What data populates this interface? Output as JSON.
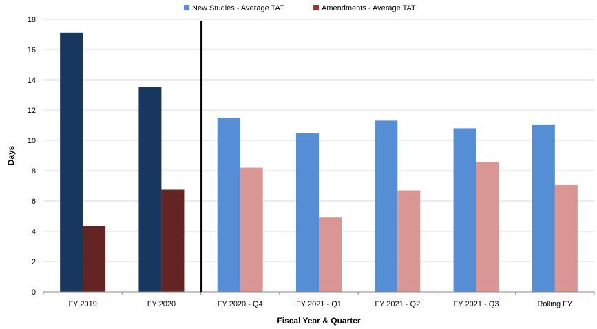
{
  "chart_data": {
    "type": "bar",
    "title": "",
    "xlabel": "Fiscal Year & Quarter",
    "ylabel": "Days",
    "ylim": [
      0,
      18
    ],
    "yticks": [
      0,
      2,
      4,
      6,
      8,
      10,
      12,
      14,
      16,
      18
    ],
    "grid": true,
    "legend_position": "top",
    "categories": [
      "FY 2019",
      "FY 2020",
      "FY 2020 - Q4",
      "FY 2021 - Q1",
      "FY 2021 - Q2",
      "FY 2021 - Q3",
      "Rolling FY"
    ],
    "divider_after_category": 1,
    "series": [
      {
        "name": "New Studies - Average TAT",
        "values": [
          17.1,
          13.5,
          11.5,
          10.5,
          11.3,
          10.8,
          11.05
        ],
        "legend_color": "#558ED5",
        "colors": [
          "#17375E",
          "#17375E",
          "#558ED5",
          "#558ED5",
          "#558ED5",
          "#558ED5",
          "#558ED5"
        ]
      },
      {
        "name": "Amendments - Average TAT",
        "values": [
          4.35,
          6.75,
          8.2,
          4.9,
          6.7,
          8.55,
          7.05
        ],
        "legend_color": "#953735",
        "colors": [
          "#632523",
          "#632523",
          "#D99694",
          "#D99694",
          "#D99694",
          "#D99694",
          "#D99694"
        ]
      }
    ]
  }
}
